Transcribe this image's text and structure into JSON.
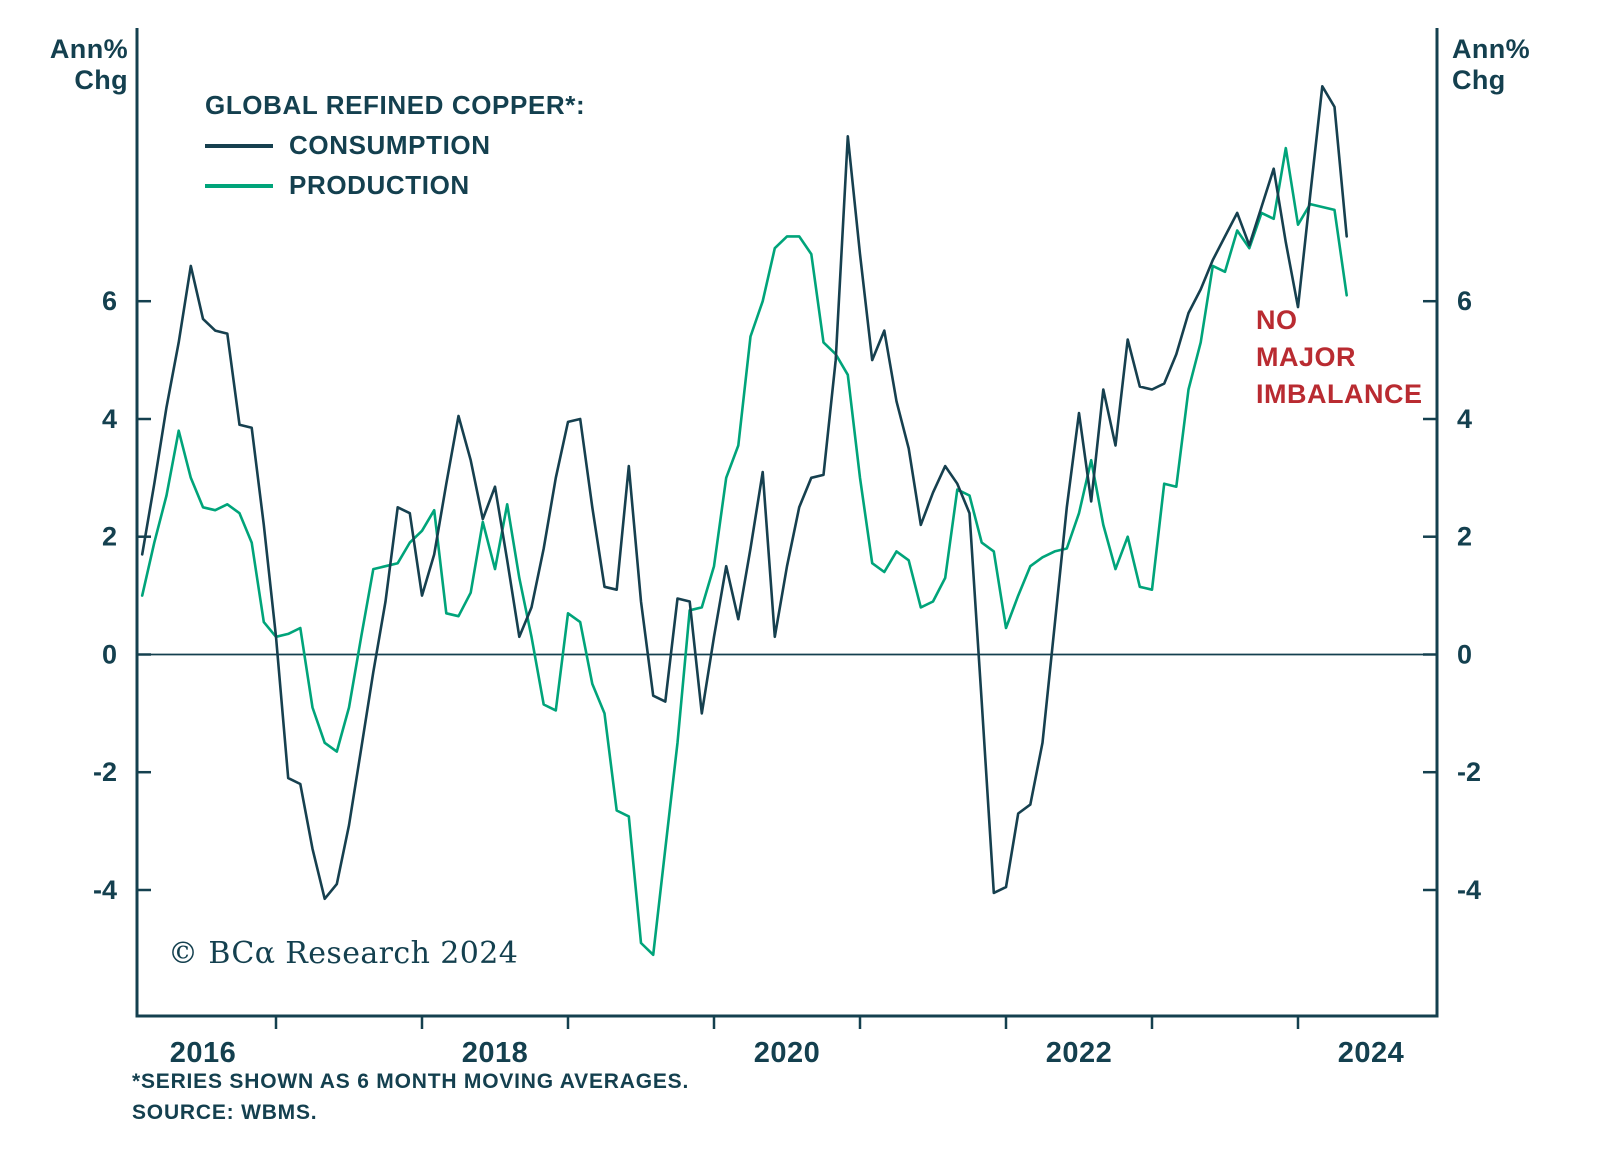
{
  "page": {
    "background": "#ffffff"
  },
  "axes": {
    "unit_line1": "Ann%",
    "unit_line2": "Chg",
    "color": "#14404f"
  },
  "legend": {
    "title": "GLOBAL REFINED COPPER*:"
  },
  "annotation": {
    "lines": [
      "NO",
      "MAJOR",
      "IMBALANCE"
    ],
    "color": "#b92b31"
  },
  "copyright": {
    "text": "© BCα Research 2024"
  },
  "footnotes": [
    "*SERIES SHOWN AS 6 MONTH MOVING AVERAGES.",
    "SOURCE: WBMS."
  ],
  "chart_data": {
    "type": "line",
    "title": "GLOBAL REFINED COPPER*",
    "subtitle": "Annual % change, 6-month moving averages",
    "x_unit": "decimal_year_monthly",
    "x_start": 2015.5833,
    "x_step": 0.0833333,
    "xlim": [
      2015.548,
      2024.452
    ],
    "ylim": [
      -6.14,
      10.64
    ],
    "y_ticks": [
      6,
      4,
      2,
      0,
      -2,
      -4
    ],
    "x_ticks": [
      {
        "label": "2016",
        "t": 2016
      },
      {
        "label": "2018",
        "t": 2018
      },
      {
        "label": "2020",
        "t": 2020
      },
      {
        "label": "2022",
        "t": 2022
      },
      {
        "label": "2024",
        "t": 2024
      }
    ],
    "x_minor_ticks": [
      2016.5,
      2017.5,
      2018.5,
      2019.5,
      2020.5,
      2021.5,
      2022.5,
      2023.5
    ],
    "zero_line": true,
    "grid": false,
    "legend_position": "top-left",
    "series": [
      {
        "name": "CONSUMPTION",
        "color": "#16404f",
        "values": [
          1.7,
          2.9,
          4.2,
          5.3,
          6.6,
          5.7,
          5.5,
          5.45,
          3.9,
          3.85,
          2.2,
          0.3,
          -2.1,
          -2.2,
          -3.3,
          -4.15,
          -3.9,
          -2.9,
          -1.6,
          -0.3,
          0.9,
          2.5,
          2.4,
          1.0,
          1.7,
          2.9,
          4.05,
          3.3,
          2.3,
          2.85,
          1.6,
          0.3,
          0.8,
          1.8,
          3.0,
          3.95,
          4.0,
          2.5,
          1.15,
          1.1,
          3.2,
          0.9,
          -0.7,
          -0.8,
          0.95,
          0.9,
          -1.0,
          0.3,
          1.5,
          0.6,
          1.8,
          3.1,
          0.3,
          1.5,
          2.5,
          3.0,
          3.05,
          5.0,
          8.8,
          6.8,
          5.0,
          5.5,
          4.3,
          3.5,
          2.2,
          2.75,
          3.2,
          2.9,
          2.4,
          -0.8,
          -4.05,
          -3.95,
          -2.7,
          -2.55,
          -1.5,
          0.5,
          2.5,
          4.1,
          2.6,
          4.5,
          3.55,
          5.35,
          4.55,
          4.5,
          4.6,
          5.1,
          5.8,
          6.2,
          6.7,
          7.1,
          7.5,
          6.95,
          7.6,
          8.25,
          7.0,
          5.9,
          7.8,
          9.65,
          9.3,
          7.1
        ]
      },
      {
        "name": "PRODUCTION",
        "color": "#00a47a",
        "values": [
          1.0,
          1.9,
          2.7,
          3.8,
          3.0,
          2.5,
          2.45,
          2.55,
          2.4,
          1.9,
          0.55,
          0.3,
          0.35,
          0.45,
          -0.9,
          -1.5,
          -1.65,
          -0.9,
          0.3,
          1.45,
          1.5,
          1.55,
          1.9,
          2.1,
          2.45,
          0.7,
          0.65,
          1.05,
          2.25,
          1.45,
          2.55,
          1.3,
          0.3,
          -0.85,
          -0.95,
          0.7,
          0.55,
          -0.5,
          -1.0,
          -2.65,
          -2.75,
          -4.9,
          -5.1,
          -3.3,
          -1.5,
          0.75,
          0.8,
          1.5,
          3.0,
          3.55,
          5.4,
          6.0,
          6.9,
          7.1,
          7.1,
          6.8,
          5.3,
          5.1,
          4.75,
          3.0,
          1.55,
          1.4,
          1.75,
          1.6,
          0.8,
          0.9,
          1.3,
          2.8,
          2.7,
          1.9,
          1.75,
          0.45,
          1.0,
          1.5,
          1.65,
          1.75,
          1.8,
          2.4,
          3.3,
          2.2,
          1.45,
          2.0,
          1.15,
          1.1,
          2.9,
          2.85,
          4.5,
          5.3,
          6.6,
          6.5,
          7.2,
          6.9,
          7.5,
          7.4,
          8.6,
          7.3,
          7.65,
          7.6,
          7.55,
          6.1
        ]
      }
    ]
  }
}
